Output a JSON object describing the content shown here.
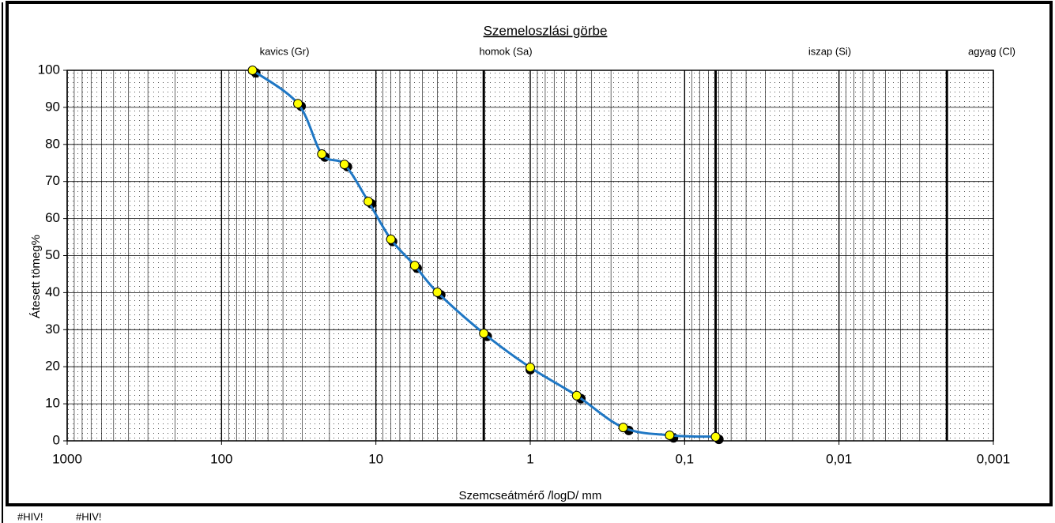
{
  "chart_data": {
    "type": "line",
    "title": "Szemeloszlási görbe",
    "xlabel": "Szemcseátmérő /logD/ mm",
    "ylabel": "Átesett tömeg%",
    "x_log": true,
    "xlim": [
      1000,
      0.001
    ],
    "ylim": [
      0,
      100
    ],
    "xticks": [
      1000,
      100,
      10,
      1,
      {
        "value": 0.1,
        "label": "0,1"
      },
      {
        "value": 0.01,
        "label": "0,01"
      },
      {
        "value": 0.001,
        "label": "0,001"
      }
    ],
    "yticks": [
      0,
      10,
      20,
      30,
      40,
      50,
      60,
      70,
      80,
      90,
      100
    ],
    "grid": true,
    "minor_grid": true,
    "boundaries": [
      2,
      0.063,
      0.002
    ],
    "zones": [
      "kavics  (Gr)",
      "homok (Sa)",
      "iszap (Si)",
      "agyag (Cl)"
    ],
    "x": [
      63,
      32,
      22.4,
      16,
      11.2,
      8,
      5.6,
      4,
      2,
      1,
      0.5,
      0.25,
      0.125,
      0.063
    ],
    "series": [
      {
        "color": "#1f77c4",
        "marker_color": "#ffff00",
        "line": true,
        "values": [
          100,
          91,
          77.4,
          74.6,
          64.6,
          54.4,
          47.3,
          40.1,
          29,
          19.8,
          12.2,
          3.6,
          1.5,
          1.1
        ]
      },
      {
        "color": "#000000",
        "marker_color": "#000000",
        "line": false,
        "x": [
          60,
          30.5,
          21.4,
          15.3,
          10.7,
          7.8,
          5.4,
          3.8,
          1.9,
          1,
          0.47,
          0.23,
          0.118,
          0.06
        ],
        "values": [
          99.3,
          90.3,
          76.6,
          74,
          64,
          53.8,
          46.6,
          39.4,
          28.2,
          19.2,
          11.4,
          2.8,
          0.8,
          0.4
        ]
      }
    ],
    "footer": [
      "#HIV!",
      "#HIV!"
    ]
  }
}
